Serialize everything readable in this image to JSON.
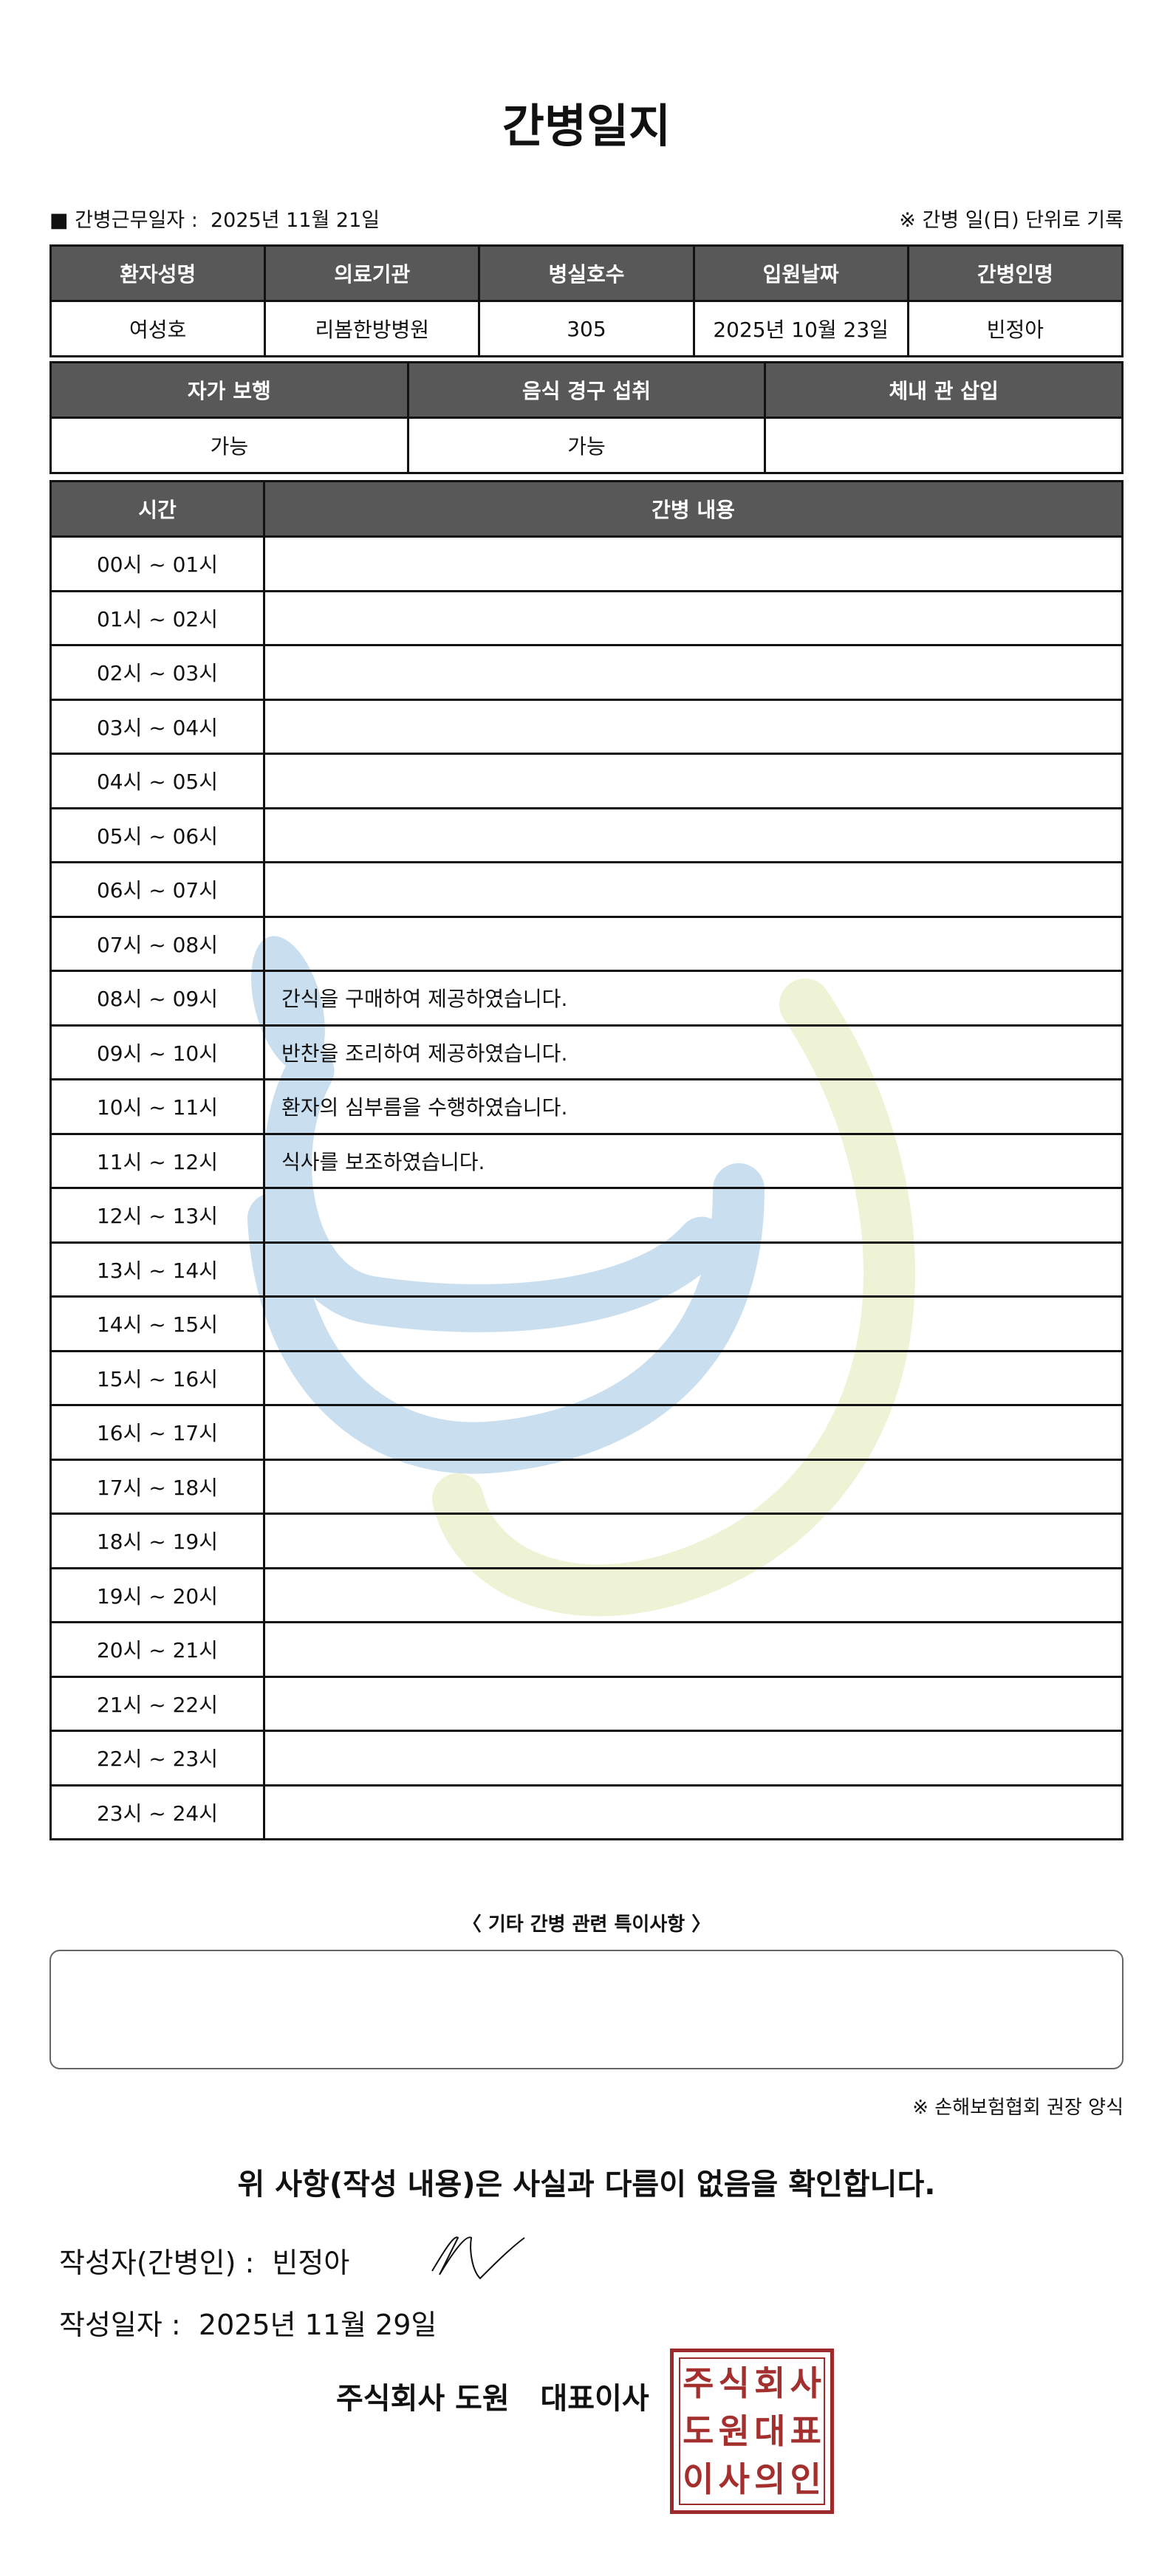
{
  "title": "간병일지",
  "work_date_label": "■ 간병근무일자 :",
  "work_date": "2025년 11월 21일",
  "unit_note": "※ 간병 일(日) 단위로 기록",
  "patient_table": {
    "headers": [
      "환자성명",
      "의료기관",
      "병실호수",
      "입원날짜",
      "간병인명"
    ],
    "values": [
      "여성호",
      "리봄한방병원",
      "305",
      "2025년 10월 23일",
      "빈정아"
    ]
  },
  "status_table": {
    "headers": [
      "자가 보행",
      "음식 경구 섭취",
      "체내 관 삽입"
    ],
    "values": [
      "가능",
      "가능",
      ""
    ]
  },
  "log_table": {
    "headers": [
      "시간",
      "간병 내용"
    ],
    "rows": [
      {
        "time": "00시 ~ 01시",
        "content": ""
      },
      {
        "time": "01시 ~ 02시",
        "content": ""
      },
      {
        "time": "02시 ~ 03시",
        "content": ""
      },
      {
        "time": "03시 ~ 04시",
        "content": ""
      },
      {
        "time": "04시 ~ 05시",
        "content": ""
      },
      {
        "time": "05시 ~ 06시",
        "content": ""
      },
      {
        "time": "06시 ~ 07시",
        "content": ""
      },
      {
        "time": "07시 ~ 08시",
        "content": ""
      },
      {
        "time": "08시 ~ 09시",
        "content": "간식을 구매하여 제공하였습니다."
      },
      {
        "time": "09시 ~ 10시",
        "content": "반찬을 조리하여 제공하였습니다."
      },
      {
        "time": "10시 ~ 11시",
        "content": "환자의 심부름을 수행하였습니다."
      },
      {
        "time": "11시 ~ 12시",
        "content": "식사를 보조하였습니다."
      },
      {
        "time": "12시 ~ 13시",
        "content": ""
      },
      {
        "time": "13시 ~ 14시",
        "content": ""
      },
      {
        "time": "14시 ~ 15시",
        "content": ""
      },
      {
        "time": "15시 ~ 16시",
        "content": ""
      },
      {
        "time": "16시 ~ 17시",
        "content": ""
      },
      {
        "time": "17시 ~ 18시",
        "content": ""
      },
      {
        "time": "18시 ~ 19시",
        "content": ""
      },
      {
        "time": "19시 ~ 20시",
        "content": ""
      },
      {
        "time": "20시 ~ 21시",
        "content": ""
      },
      {
        "time": "21시 ~ 22시",
        "content": ""
      },
      {
        "time": "22시 ~ 23시",
        "content": ""
      },
      {
        "time": "23시 ~ 24시",
        "content": ""
      }
    ]
  },
  "special_notes_heading": "〈 기타 간병 관련 특이사항 〉",
  "special_notes": "",
  "form_note": "※ 손해보험협회 권장 양식",
  "confirmation": "위 사항(작성 내용)은 사실과 다름이 없음을 확인합니다.",
  "writer_label": "작성자(간병인) :",
  "writer_name": "빈정아",
  "write_date_label": "작성일자 :",
  "write_date": "2025년 11월 29일",
  "company_line": "주식회사 도원   대표이사",
  "stamp_text": "주식회사도원대표이사의인",
  "colors": {
    "header_bg": "#585858",
    "stamp": "#9e2a2b",
    "watermark_blue": "#c9dff0",
    "watermark_green": "#eef3d6"
  }
}
